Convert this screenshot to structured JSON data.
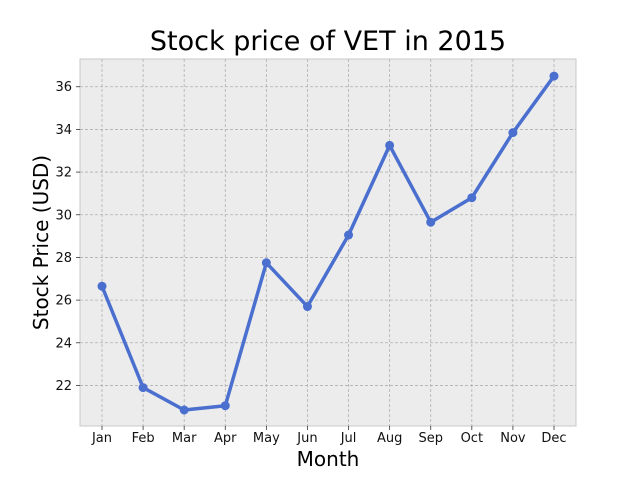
{
  "chart_data": {
    "type": "line",
    "title": "Stock price of VET in 2015",
    "xlabel": "Month",
    "ylabel": "Stock Price (USD)",
    "categories": [
      "Jan",
      "Feb",
      "Mar",
      "Apr",
      "May",
      "Jun",
      "Jul",
      "Aug",
      "Sep",
      "Oct",
      "Nov",
      "Dec"
    ],
    "series": [
      {
        "values": [
          26.65,
          21.9,
          20.85,
          21.05,
          27.75,
          25.7,
          29.05,
          33.25,
          29.65,
          30.8,
          33.85,
          36.5
        ]
      }
    ],
    "ylim": [
      20.1,
      37.3
    ],
    "yticks": [
      22,
      24,
      26,
      28,
      30,
      32,
      34,
      36
    ],
    "grid": true,
    "colors": {
      "line": "#4a6fcf",
      "plot_background": "#ececec",
      "grid": "#b0b0b0",
      "frame": "#c8c8c8"
    }
  }
}
